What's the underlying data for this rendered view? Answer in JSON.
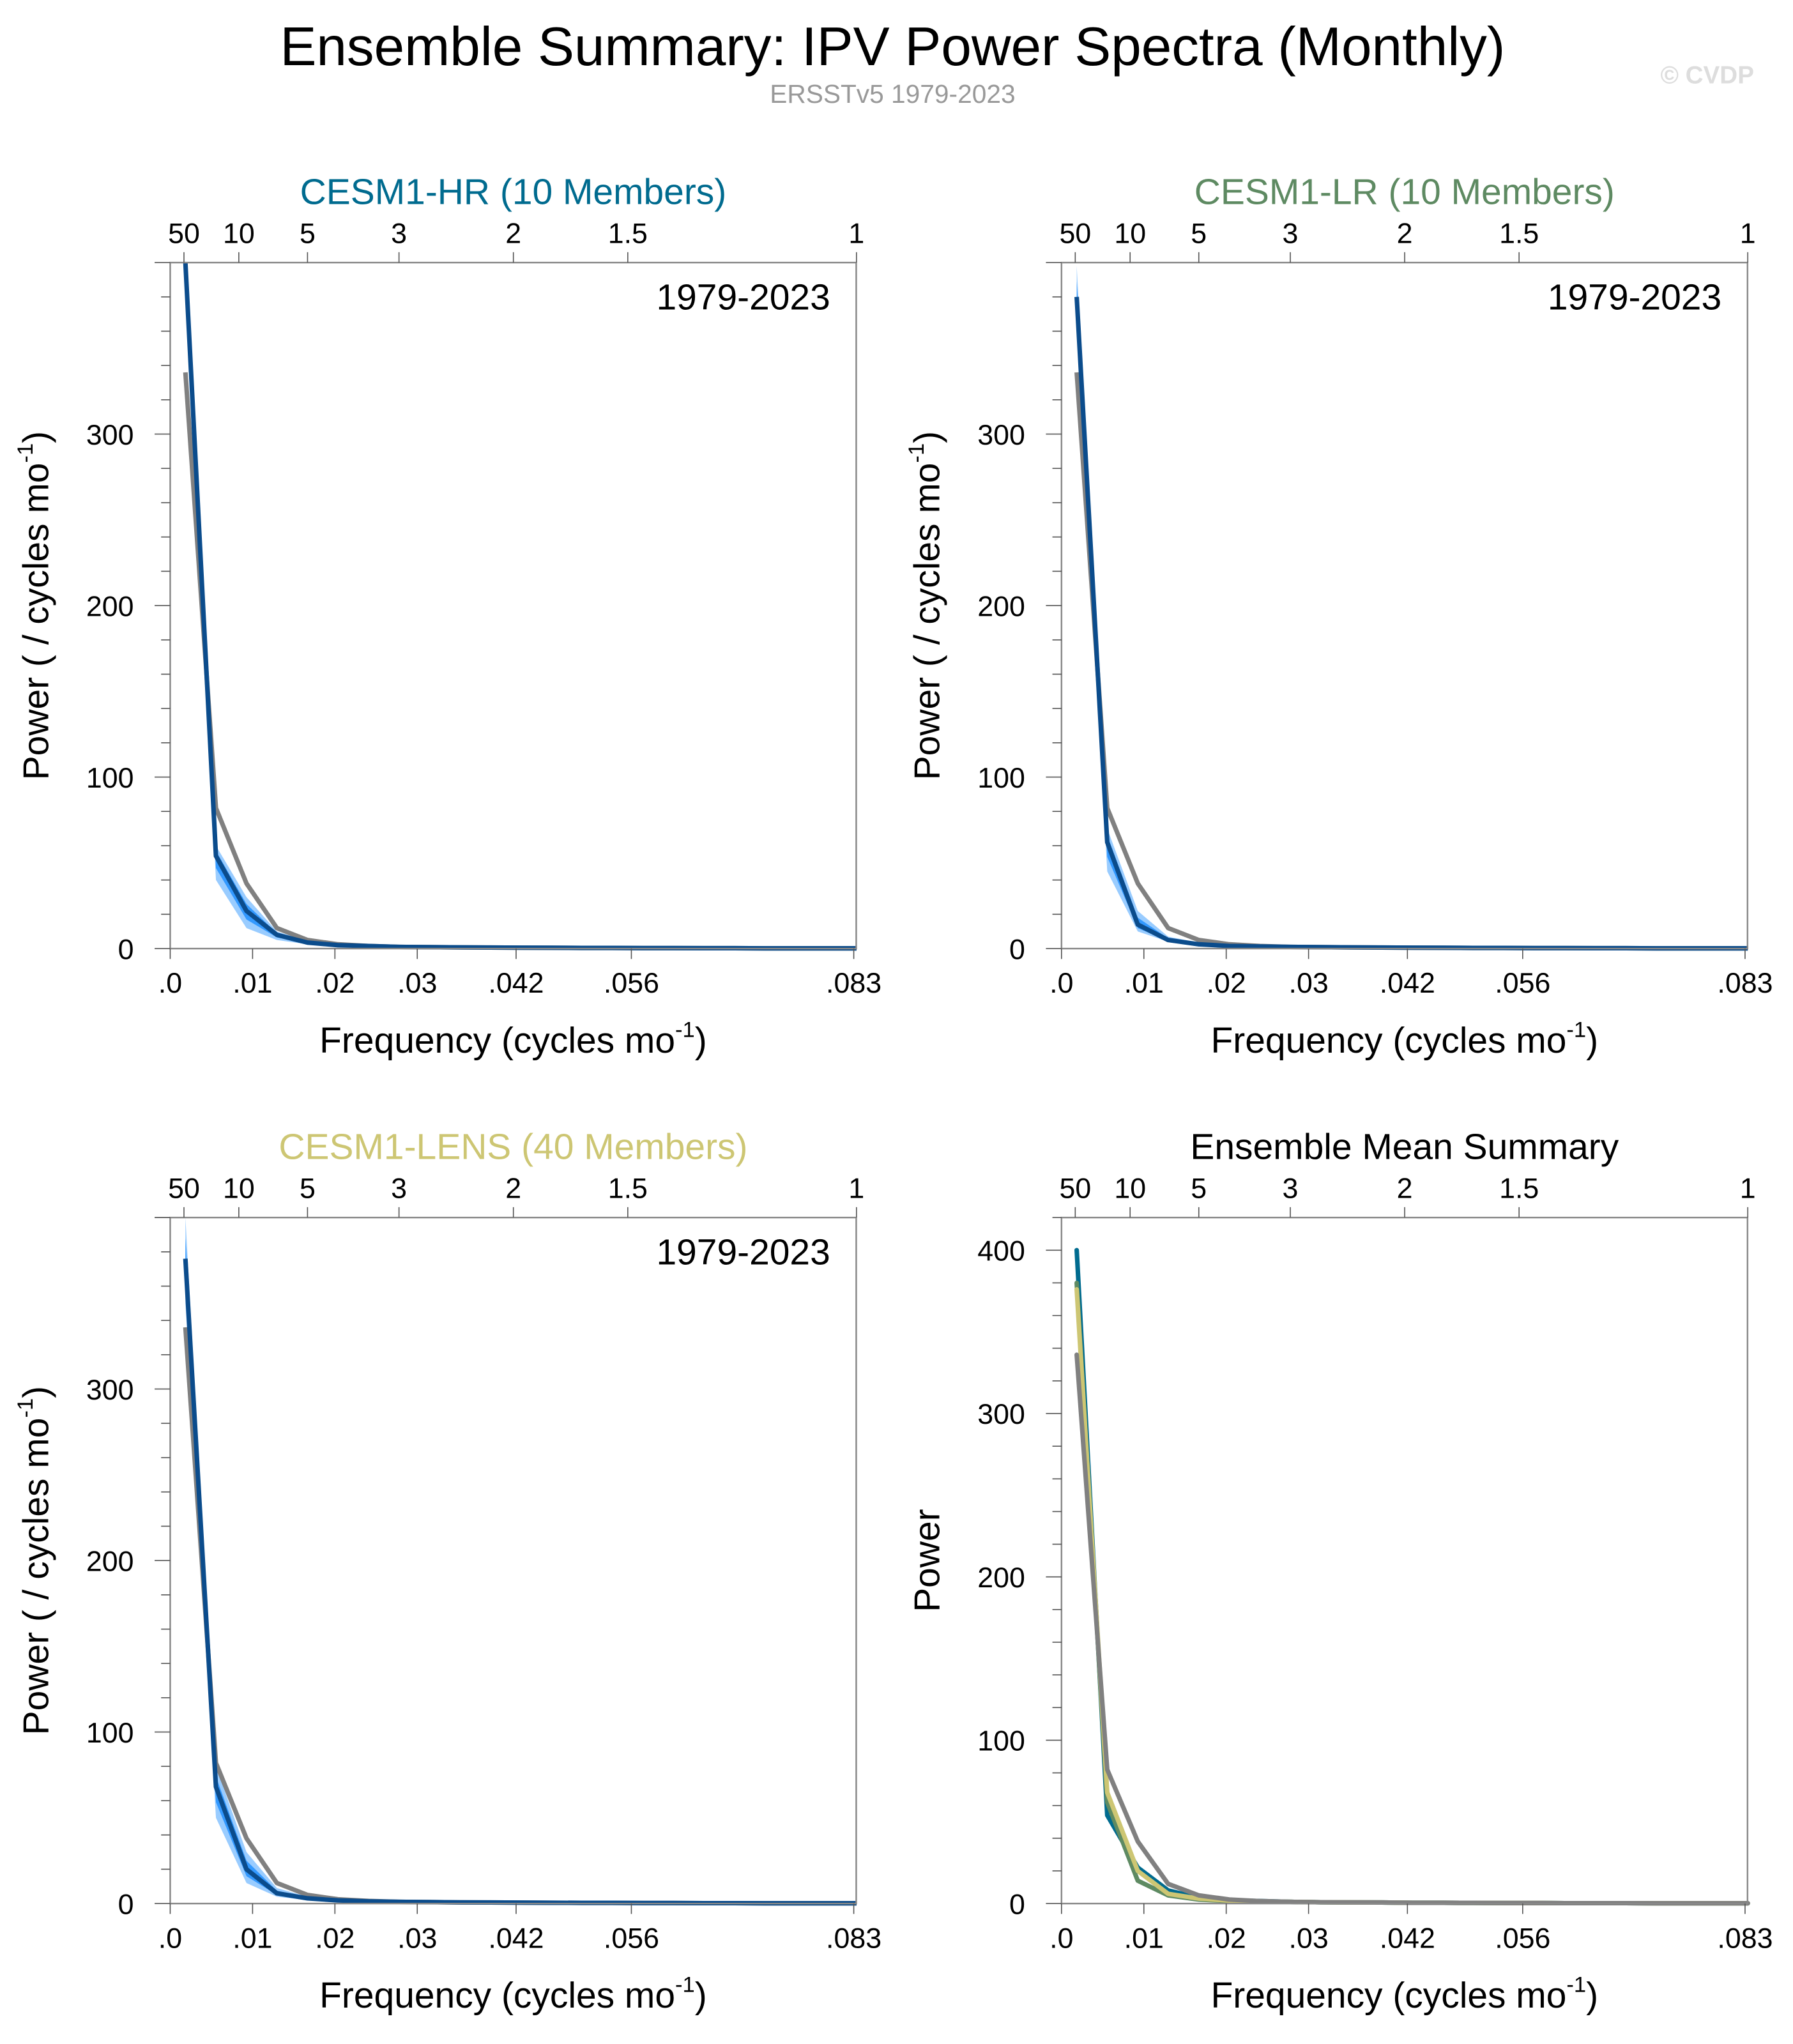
{
  "title": "Ensemble Summary: IPV Power Spectra (Monthly)",
  "subtitle": "ERSSTv5 1979-2023",
  "watermark": "© CVDP",
  "colors": {
    "obs": "#808080",
    "mean_line": "#0b4c8c",
    "band_outer": "#99ccff",
    "band_inner": "#3399ff",
    "hr": "#006b8f",
    "lr": "#5e8a62",
    "lens": "#cdc673"
  },
  "chart_data": [
    {
      "type": "line",
      "title": "CESM1-HR (10 Members)",
      "title_color": "#006b8f",
      "annotation": "1979-2023",
      "xlabel": "Frequency (cycles mo",
      "xlabel_sup": "-1",
      "xlabel_end": ")",
      "ylabel": "Power ( / cycles mo",
      "ylabel_sup": "-1",
      "ylabel_end": ")",
      "xlim": [
        0,
        0.0833
      ],
      "ylim": [
        0,
        400
      ],
      "xticks": [
        0,
        0.01,
        0.02,
        0.03,
        0.042,
        0.056,
        0.083
      ],
      "xtick_labels": [
        ".0",
        ".01",
        ".02",
        ".03",
        ".042",
        ".056",
        ".083"
      ],
      "top_ticks": [
        0.00167,
        0.00833,
        0.01667,
        0.02778,
        0.04167,
        0.05556,
        0.08333
      ],
      "top_tick_labels": [
        "50",
        "10",
        "5",
        "3",
        "2",
        "1.5",
        "1"
      ],
      "yticks": [
        0,
        100,
        200,
        300
      ],
      "ytick_labels": [
        "0",
        "100",
        "200",
        "300"
      ],
      "series": [
        {
          "role": "obs",
          "values": [
            336,
            82,
            38,
            12,
            5,
            2.5,
            1.5,
            1,
            0.8,
            0.7,
            0.6,
            0.5,
            0.45,
            0.4,
            0.35,
            0.3,
            0.27,
            0.24,
            0.2,
            0.18,
            0.16,
            0.14,
            0.12
          ]
        },
        {
          "role": "ensemble-mean",
          "values": [
            400,
            54,
            22,
            8,
            3.5,
            2,
            1.5,
            1,
            0.8,
            0.7,
            0.6,
            0.5,
            0.45,
            0.4,
            0.35,
            0.3,
            0.27,
            0.24,
            0.2,
            0.18,
            0.16,
            0.14,
            0.12
          ]
        },
        {
          "role": "spread-min",
          "values": [
            392,
            40,
            12,
            5,
            2.5,
            1.5,
            1,
            0.8,
            0.6,
            0.5,
            0.4,
            0.35,
            0.3,
            0.28,
            0.25,
            0.22,
            0.2,
            0.18,
            0.15,
            0.13,
            0.12,
            0.1,
            0.08
          ]
        },
        {
          "role": "spread-max",
          "values": [
            405,
            60,
            30,
            10,
            4.5,
            2.5,
            2,
            1.3,
            1,
            0.9,
            0.8,
            0.7,
            0.6,
            0.5,
            0.45,
            0.4,
            0.35,
            0.3,
            0.27,
            0.24,
            0.2,
            0.18,
            0.16
          ]
        }
      ]
    },
    {
      "type": "line",
      "title": "CESM1-LR (10 Members)",
      "title_color": "#5e8a62",
      "annotation": "1979-2023",
      "xlabel": "Frequency (cycles mo",
      "xlabel_sup": "-1",
      "xlabel_end": ")",
      "ylabel": "Power ( / cycles mo",
      "ylabel_sup": "-1",
      "ylabel_end": ")",
      "xlim": [
        0,
        0.0833
      ],
      "ylim": [
        0,
        400
      ],
      "xticks": [
        0,
        0.01,
        0.02,
        0.03,
        0.042,
        0.056,
        0.083
      ],
      "xtick_labels": [
        ".0",
        ".01",
        ".02",
        ".03",
        ".042",
        ".056",
        ".083"
      ],
      "top_ticks": [
        0.00167,
        0.00833,
        0.01667,
        0.02778,
        0.04167,
        0.05556,
        0.08333
      ],
      "top_tick_labels": [
        "50",
        "10",
        "5",
        "3",
        "2",
        "1.5",
        "1"
      ],
      "yticks": [
        0,
        100,
        200,
        300
      ],
      "ytick_labels": [
        "0",
        "100",
        "200",
        "300"
      ],
      "series": [
        {
          "role": "obs",
          "values": [
            336,
            82,
            38,
            12,
            5,
            2.5,
            1.5,
            1,
            0.8,
            0.7,
            0.6,
            0.5,
            0.45,
            0.4,
            0.35,
            0.3,
            0.27,
            0.24,
            0.2,
            0.18,
            0.16,
            0.14,
            0.12
          ]
        },
        {
          "role": "ensemble-mean",
          "values": [
            380,
            62,
            14,
            5,
            2.5,
            1.5,
            1.2,
            1,
            0.8,
            0.7,
            0.6,
            0.5,
            0.45,
            0.4,
            0.35,
            0.3,
            0.27,
            0.24,
            0.2,
            0.18,
            0.16,
            0.14,
            0.12
          ]
        },
        {
          "role": "spread-min",
          "values": [
            360,
            45,
            10,
            4,
            2,
            1.2,
            0.9,
            0.7,
            0.6,
            0.5,
            0.4,
            0.35,
            0.3,
            0.28,
            0.25,
            0.22,
            0.2,
            0.18,
            0.15,
            0.13,
            0.12,
            0.1,
            0.08
          ]
        },
        {
          "role": "spread-max",
          "values": [
            398,
            70,
            22,
            7,
            3.5,
            2,
            1.6,
            1.3,
            1,
            0.9,
            0.8,
            0.7,
            0.6,
            0.5,
            0.45,
            0.4,
            0.35,
            0.3,
            0.27,
            0.24,
            0.2,
            0.18,
            0.16
          ]
        }
      ]
    },
    {
      "type": "line",
      "title": "CESM1-LENS (40 Members)",
      "title_color": "#cdc673",
      "annotation": "1979-2023",
      "xlabel": "Frequency (cycles mo",
      "xlabel_sup": "-1",
      "xlabel_end": ")",
      "ylabel": "Power ( / cycles mo",
      "ylabel_sup": "-1",
      "ylabel_end": ")",
      "xlim": [
        0,
        0.0833
      ],
      "ylim": [
        0,
        400
      ],
      "xticks": [
        0,
        0.01,
        0.02,
        0.03,
        0.042,
        0.056,
        0.083
      ],
      "xtick_labels": [
        ".0",
        ".01",
        ".02",
        ".03",
        ".042",
        ".056",
        ".083"
      ],
      "top_ticks": [
        0.00167,
        0.00833,
        0.01667,
        0.02778,
        0.04167,
        0.05556,
        0.08333
      ],
      "top_tick_labels": [
        "50",
        "10",
        "5",
        "3",
        "2",
        "1.5",
        "1"
      ],
      "yticks": [
        0,
        100,
        200,
        300
      ],
      "ytick_labels": [
        "0",
        "100",
        "200",
        "300"
      ],
      "series": [
        {
          "role": "obs",
          "values": [
            336,
            82,
            38,
            12,
            5,
            2.5,
            1.5,
            1,
            0.8,
            0.7,
            0.6,
            0.5,
            0.45,
            0.4,
            0.35,
            0.3,
            0.27,
            0.24,
            0.2,
            0.18,
            0.16,
            0.14,
            0.12
          ]
        },
        {
          "role": "ensemble-mean",
          "values": [
            376,
            68,
            20,
            6,
            3,
            1.8,
            1.3,
            1,
            0.8,
            0.7,
            0.6,
            0.5,
            0.45,
            0.4,
            0.35,
            0.3,
            0.27,
            0.24,
            0.2,
            0.18,
            0.16,
            0.14,
            0.12
          ]
        },
        {
          "role": "spread-min",
          "values": [
            350,
            50,
            12,
            4,
            2,
            1.2,
            0.9,
            0.7,
            0.6,
            0.5,
            0.4,
            0.35,
            0.3,
            0.28,
            0.25,
            0.22,
            0.2,
            0.18,
            0.15,
            0.13,
            0.12,
            0.1,
            0.08
          ]
        },
        {
          "role": "spread-max",
          "values": [
            400,
            80,
            30,
            9,
            4,
            2.3,
            1.7,
            1.3,
            1,
            0.9,
            0.8,
            0.7,
            0.6,
            0.5,
            0.45,
            0.4,
            0.35,
            0.3,
            0.27,
            0.24,
            0.2,
            0.18,
            0.16
          ]
        }
      ]
    },
    {
      "type": "line",
      "title": "Ensemble Mean Summary",
      "title_color": "#000000",
      "annotation": "",
      "xlabel": "Frequency (cycles mo",
      "xlabel_sup": "-1",
      "xlabel_end": ")",
      "ylabel": "Power",
      "ylabel_sup": "",
      "ylabel_end": "",
      "xlim": [
        0,
        0.0833
      ],
      "ylim": [
        0,
        420
      ],
      "xticks": [
        0,
        0.01,
        0.02,
        0.03,
        0.042,
        0.056,
        0.083
      ],
      "xtick_labels": [
        ".0",
        ".01",
        ".02",
        ".03",
        ".042",
        ".056",
        ".083"
      ],
      "top_ticks": [
        0.00167,
        0.00833,
        0.01667,
        0.02778,
        0.04167,
        0.05556,
        0.08333
      ],
      "top_tick_labels": [
        "50",
        "10",
        "5",
        "3",
        "2",
        "1.5",
        "1"
      ],
      "yticks": [
        0,
        100,
        200,
        300,
        400
      ],
      "ytick_labels": [
        "0",
        "100",
        "200",
        "300",
        "400"
      ],
      "series": [
        {
          "role": "hr",
          "values": [
            400,
            54,
            22,
            8,
            3.5,
            2,
            1.5,
            1,
            0.8,
            0.7,
            0.6,
            0.5,
            0.45,
            0.4,
            0.35,
            0.3,
            0.27,
            0.24,
            0.2,
            0.18,
            0.16,
            0.14,
            0.12
          ]
        },
        {
          "role": "lr",
          "values": [
            380,
            62,
            14,
            5,
            2.5,
            1.5,
            1.2,
            1,
            0.8,
            0.7,
            0.6,
            0.5,
            0.45,
            0.4,
            0.35,
            0.3,
            0.27,
            0.24,
            0.2,
            0.18,
            0.16,
            0.14,
            0.12
          ]
        },
        {
          "role": "lens",
          "values": [
            376,
            68,
            20,
            6,
            3,
            1.8,
            1.3,
            1,
            0.8,
            0.7,
            0.6,
            0.5,
            0.45,
            0.4,
            0.35,
            0.3,
            0.27,
            0.24,
            0.2,
            0.18,
            0.16,
            0.14,
            0.12
          ]
        },
        {
          "role": "obs",
          "values": [
            336,
            82,
            38,
            12,
            5,
            2.5,
            1.5,
            1,
            0.8,
            0.7,
            0.6,
            0.5,
            0.45,
            0.4,
            0.35,
            0.3,
            0.27,
            0.24,
            0.2,
            0.18,
            0.16,
            0.14,
            0.12
          ]
        }
      ]
    }
  ],
  "frequencies": [
    0.00185,
    0.00556,
    0.00926,
    0.01296,
    0.01667,
    0.02037,
    0.02407,
    0.02778,
    0.03148,
    0.03519,
    0.03889,
    0.04259,
    0.0463,
    0.05,
    0.0537,
    0.05741,
    0.06111,
    0.06481,
    0.06852,
    0.07222,
    0.07593,
    0.07963,
    0.08333
  ]
}
